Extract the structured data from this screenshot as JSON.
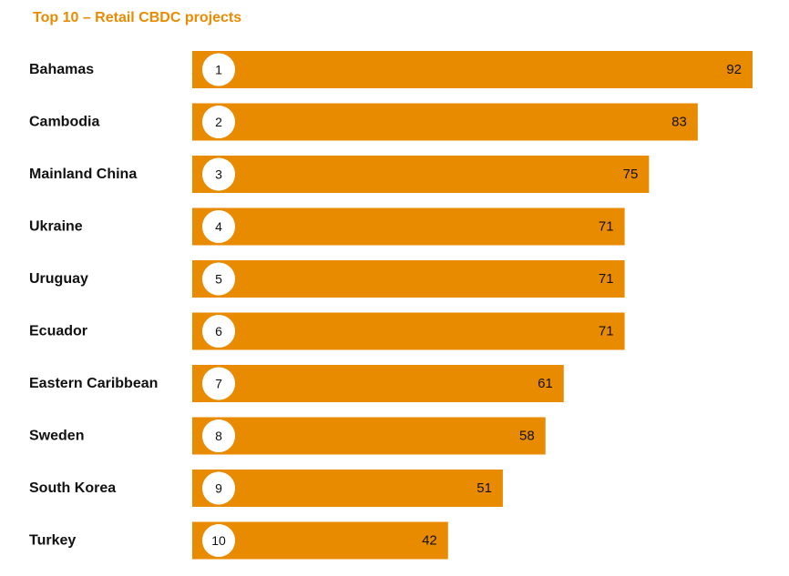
{
  "chart_data": {
    "type": "bar",
    "orientation": "horizontal",
    "title": "Top 10 – Retail CBDC projects",
    "categories": [
      "Bahamas",
      "Cambodia",
      "Mainland China",
      "Ukraine",
      "Uruguay",
      "Ecuador",
      "Eastern Caribbean",
      "Sweden",
      "South Korea",
      "Turkey"
    ],
    "ranks": [
      "1",
      "2",
      "3",
      "4",
      "5",
      "6",
      "7",
      "8",
      "9",
      "10"
    ],
    "values": [
      92,
      83,
      75,
      71,
      71,
      71,
      61,
      58,
      51,
      42
    ],
    "xlim": [
      0,
      92
    ],
    "xlabel": "",
    "ylabel": "",
    "grid": false,
    "legend": "none"
  },
  "colors": {
    "bar": "#e98b00",
    "title": "#e98b00",
    "rank_circle": "#ffffff",
    "text": "#111111"
  }
}
